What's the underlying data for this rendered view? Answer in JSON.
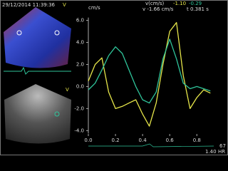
{
  "header": {
    "datetime": "29/12/2014 11:39:36",
    "top_marker": "V",
    "lower_marker": "V",
    "readout_label": "v(cm/s)",
    "readout_a": "-1.10",
    "readout_b": "-0.29",
    "cursor_v": "v -1.66 cm/s",
    "cursor_t": "t 0.381 s",
    "hr_value": "67",
    "hr_scale": "1.40",
    "hr_label": "HR"
  },
  "chart_data": {
    "type": "line",
    "y_label": "cm/s",
    "x": [
      0,
      0.05,
      0.1,
      0.15,
      0.2,
      0.25,
      0.3,
      0.35,
      0.4,
      0.45,
      0.5,
      0.55,
      0.6,
      0.65,
      0.7,
      0.75,
      0.8,
      0.85,
      0.9
    ],
    "series": [
      {
        "color": "#e6e64a",
        "values": [
          0.5,
          2.0,
          2.6,
          -0.5,
          -2.0,
          -1.8,
          -1.5,
          -1.2,
          -2.5,
          -3.6,
          -1.5,
          2.0,
          5.0,
          5.8,
          1.0,
          -2.0,
          -1.0,
          -0.3,
          -0.6
        ]
      },
      {
        "color": "#2fc49a",
        "values": [
          -0.3,
          0.3,
          1.5,
          2.8,
          3.6,
          3.0,
          1.5,
          0.0,
          -1.2,
          -1.5,
          -0.5,
          2.5,
          4.3,
          2.5,
          0.3,
          -0.2,
          0.0,
          -0.2,
          -0.4
        ]
      }
    ],
    "xlim": [
      0,
      0.93
    ],
    "ylim": [
      -5.4,
      7.2
    ],
    "xticks": [
      {
        "value": 0,
        "label": "0.0"
      },
      {
        "value": 0.2,
        "label": "0.2"
      },
      {
        "value": 0.4,
        "label": "0.4"
      },
      {
        "value": 0.6,
        "label": "0.6"
      },
      {
        "value": 0.8,
        "label": "0.8"
      }
    ],
    "yticks": [
      {
        "value": 6,
        "label": "6.0"
      },
      {
        "value": 4,
        "label": "4.0"
      },
      {
        "value": 2,
        "label": "2.0"
      },
      {
        "value": 0,
        "label": "0.0"
      },
      {
        "value": -2,
        "label": "-2.0"
      },
      {
        "value": -4,
        "label": "-4.0"
      }
    ]
  }
}
